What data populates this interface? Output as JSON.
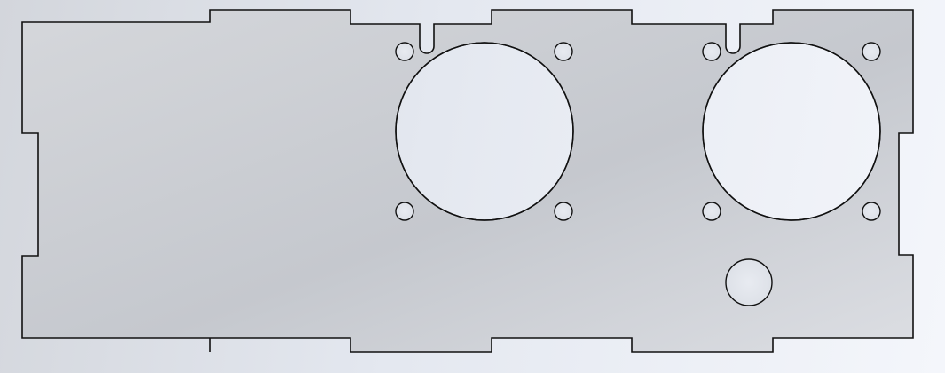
{
  "scene": {
    "background_colors": [
      "#d3d6dc",
      "#e4e8f0",
      "#f4f6fb"
    ],
    "part_fill_colors": [
      "#cfd1d6",
      "#c6c9cf",
      "#dcdee3"
    ],
    "edge_color": "#111111",
    "hole_colors": [
      "#e6e9ef",
      "#dfe3ea",
      "#d9dde4"
    ]
  },
  "part": {
    "kind": "flat-plate",
    "edge_tabs": "top-bottom-left-right",
    "fan_cutouts": [
      {
        "mount_holes": 4,
        "side_slot": true
      },
      {
        "mount_holes": 4,
        "side_slot": true
      }
    ],
    "round_holes": 1
  }
}
